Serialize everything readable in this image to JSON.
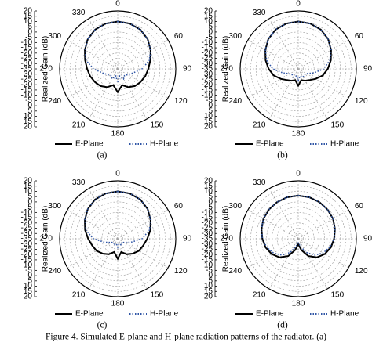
{
  "chart_data": [
    {
      "type": "polar",
      "label": "(a)",
      "r_label": "Realized Gain (dB)",
      "theta": [
        0,
        15,
        30,
        45,
        60,
        75,
        90,
        105,
        120,
        135,
        150,
        165,
        180,
        195,
        210,
        225,
        240,
        255,
        270,
        285,
        300,
        315,
        330,
        345
      ],
      "rlim": [
        -35,
        20
      ],
      "rticks": [
        20,
        15,
        10,
        5,
        0,
        -5,
        -10,
        -15,
        -20,
        -25,
        -30,
        -35
      ],
      "angle_ticks": [
        0,
        60,
        90,
        120,
        150,
        180,
        210,
        240,
        270,
        300,
        330
      ],
      "grid": true,
      "series": [
        {
          "name": "E-Plane",
          "color": "#000000",
          "dash": "solid",
          "values": [
            10,
            9.5,
            8,
            5,
            1,
            -3,
            -6,
            -8,
            -10,
            -12,
            -15,
            -19,
            -13,
            -19,
            -15,
            -12,
            -10,
            -8,
            -6,
            -3,
            1,
            5,
            8,
            9.5
          ]
        },
        {
          "name": "H-Plane",
          "color": "#2f55a5",
          "dash": "dotted",
          "values": [
            10,
            9.5,
            8,
            5,
            1,
            -4,
            -12,
            -20,
            -24,
            -26,
            -24,
            -28,
            -22,
            -28,
            -24,
            -26,
            -24,
            -20,
            -12,
            -4,
            1,
            5,
            8,
            9.5
          ]
        }
      ]
    },
    {
      "type": "polar",
      "label": "(b)",
      "r_label": "Realized Gain (dB)",
      "theta": [
        0,
        15,
        30,
        45,
        60,
        75,
        90,
        105,
        120,
        135,
        150,
        165,
        180,
        195,
        210,
        225,
        240,
        255,
        270,
        285,
        300,
        315,
        330,
        345
      ],
      "rlim": [
        -35,
        20
      ],
      "rticks": [
        20,
        15,
        10,
        5,
        0,
        -5,
        -10,
        -15,
        -20,
        -25,
        -30,
        -35
      ],
      "angle_ticks": [
        0,
        60,
        90,
        120,
        150,
        180,
        210,
        240,
        270,
        300,
        330
      ],
      "grid": true,
      "series": [
        {
          "name": "E-Plane",
          "color": "#000000",
          "dash": "solid",
          "values": [
            10,
            9.5,
            8,
            5,
            1,
            -3,
            -7,
            -11,
            -16,
            -20,
            -22,
            -24,
            -19,
            -24,
            -22,
            -20,
            -16,
            -11,
            -7,
            -3,
            1,
            5,
            8,
            9.5
          ]
        },
        {
          "name": "H-Plane",
          "color": "#2f55a5",
          "dash": "dotted",
          "values": [
            10,
            9.5,
            8,
            5,
            1,
            -4,
            -11,
            -20,
            -26,
            -27,
            -26,
            -28,
            -24,
            -28,
            -26,
            -27,
            -26,
            -20,
            -11,
            -4,
            1,
            5,
            8,
            9.5
          ]
        }
      ]
    },
    {
      "type": "polar",
      "label": "(c)",
      "r_label": "Realized Gain (dB)",
      "theta": [
        0,
        15,
        30,
        45,
        60,
        75,
        90,
        105,
        120,
        135,
        150,
        165,
        180,
        195,
        210,
        225,
        240,
        255,
        270,
        285,
        300,
        315,
        330,
        345
      ],
      "rlim": [
        -35,
        20
      ],
      "rticks": [
        20,
        15,
        10,
        5,
        0,
        -5,
        -10,
        -15,
        -20,
        -25,
        -30,
        -35
      ],
      "angle_ticks": [
        0,
        60,
        90,
        120,
        150,
        180,
        210,
        240,
        270,
        300,
        330
      ],
      "grid": true,
      "series": [
        {
          "name": "E-Plane",
          "color": "#000000",
          "dash": "solid",
          "values": [
            10,
            9.5,
            8,
            5,
            1,
            -3,
            -7,
            -10,
            -12,
            -15,
            -18,
            -22,
            -16,
            -22,
            -18,
            -15,
            -12,
            -10,
            -7,
            -3,
            1,
            5,
            8,
            9.5
          ]
        },
        {
          "name": "H-Plane",
          "color": "#2f55a5",
          "dash": "dotted",
          "values": [
            10,
            9.5,
            8,
            5,
            1,
            -4,
            -12,
            -22,
            -28,
            -30,
            -28,
            -30,
            -27,
            -30,
            -28,
            -30,
            -28,
            -22,
            -12,
            -4,
            1,
            5,
            8,
            9.5
          ]
        }
      ]
    },
    {
      "type": "polar",
      "label": "(d)",
      "r_label": "Realized Gain (dB)",
      "theta": [
        0,
        15,
        30,
        45,
        60,
        75,
        90,
        105,
        120,
        135,
        150,
        165,
        180,
        195,
        210,
        225,
        240,
        255,
        270,
        285,
        300,
        315,
        330,
        345
      ],
      "rlim": [
        -35,
        20
      ],
      "rticks": [
        20,
        15,
        10,
        5,
        0,
        -5,
        -10,
        -15,
        -20,
        -25,
        -30,
        -35
      ],
      "angle_ticks": [
        0,
        60,
        90,
        120,
        150,
        180,
        210,
        240,
        270,
        300,
        330
      ],
      "grid": true,
      "series": [
        {
          "name": "E-Plane",
          "color": "#000000",
          "dash": "solid",
          "values": [
            6,
            5.8,
            5.2,
            4.2,
            3,
            1,
            -1,
            -3,
            -6,
            -10,
            -16,
            -24,
            -30,
            -24,
            -16,
            -10,
            -6,
            -3,
            -1,
            1,
            3,
            4.2,
            5.2,
            5.8
          ]
        },
        {
          "name": "H-Plane",
          "color": "#2f55a5",
          "dash": "dotted",
          "values": [
            6,
            5.8,
            5.2,
            4.2,
            3,
            1,
            -1,
            -4,
            -8,
            -13,
            -20,
            -28,
            -31,
            -28,
            -20,
            -13,
            -8,
            -4,
            -1,
            1,
            3,
            4.2,
            5.2,
            5.8
          ]
        }
      ]
    }
  ],
  "caption": "Figure 4. Simulated E-plane and H-plane radiation patterns of the radiator. (a)"
}
